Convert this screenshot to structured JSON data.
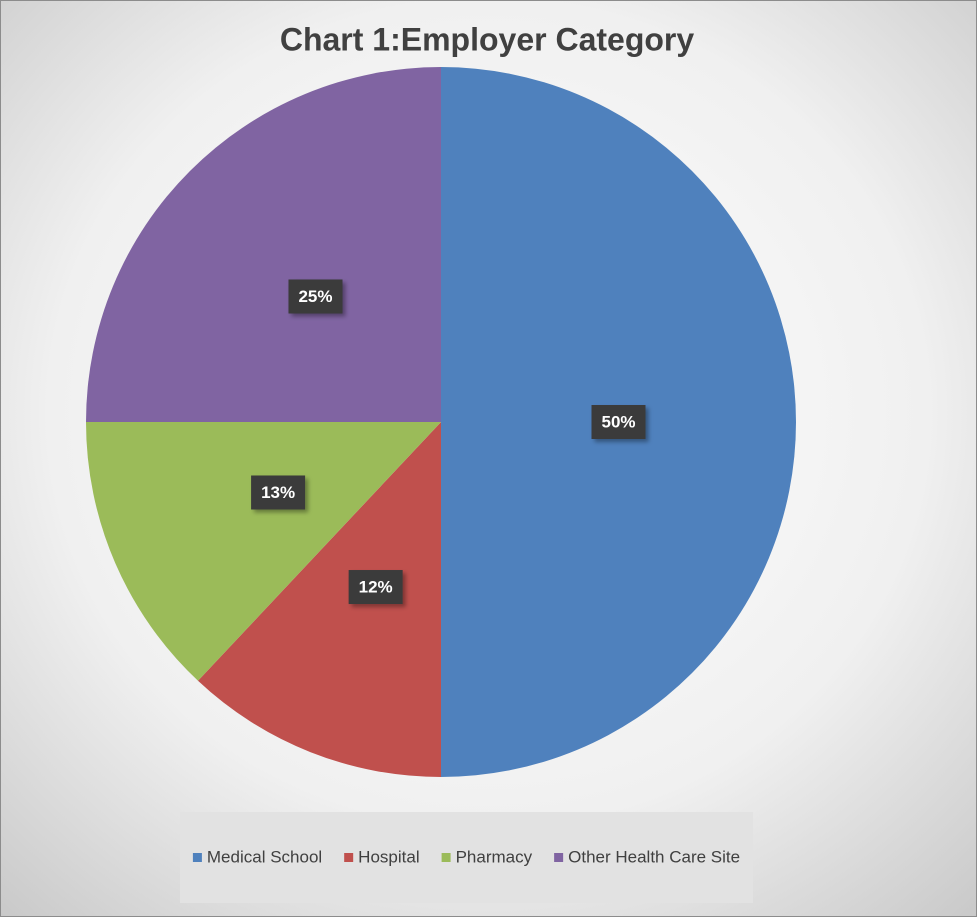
{
  "chart_data": {
    "type": "pie",
    "title": "Chart 1:Employer Category",
    "categories": [
      "Medical School",
      "Hospital",
      "Pharmacy",
      "Other Health Care Site"
    ],
    "values": [
      50,
      12,
      13,
      25
    ],
    "value_labels": [
      "50%",
      "12%",
      "13%",
      "25%"
    ],
    "colors": [
      "#4f81bd",
      "#c0504d",
      "#9bbb59",
      "#8064a2"
    ],
    "legend": "bottom"
  }
}
